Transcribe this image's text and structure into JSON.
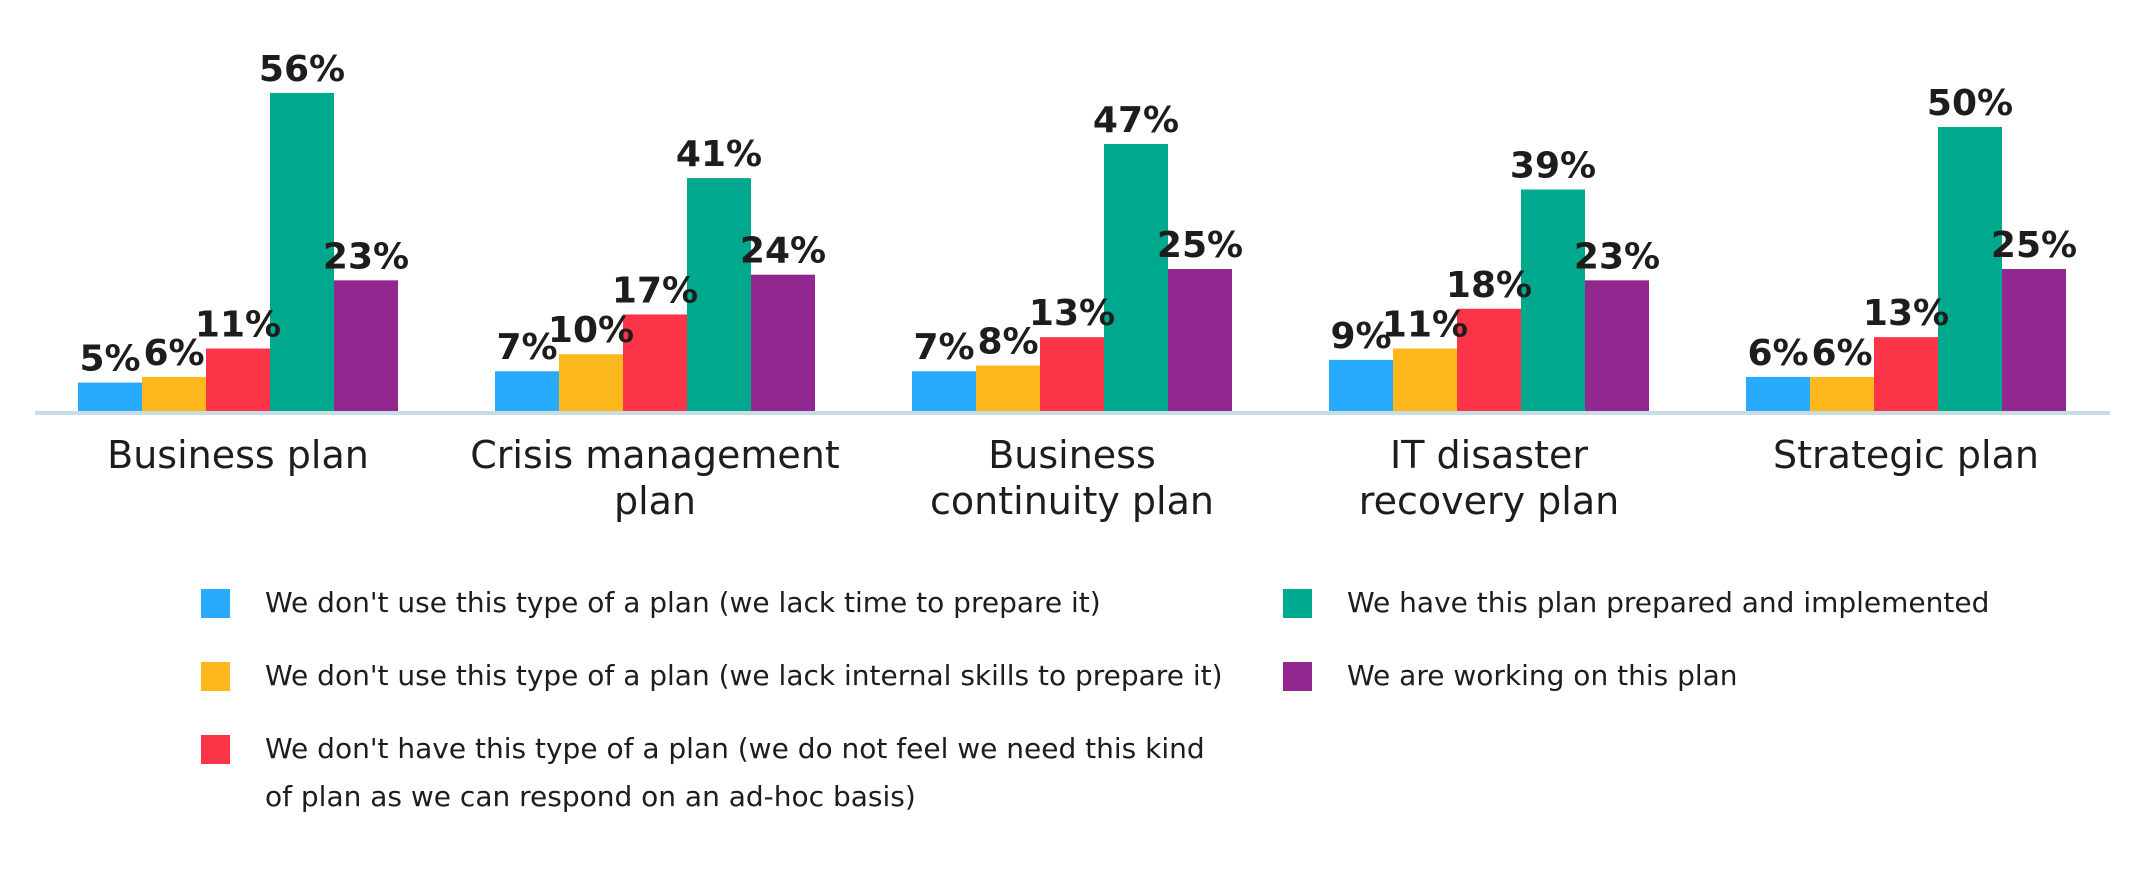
{
  "chart_data": {
    "type": "bar",
    "categories": [
      [
        "Business plan"
      ],
      [
        "Crisis management",
        "plan"
      ],
      [
        "Business",
        "continuity plan"
      ],
      [
        "IT disaster",
        "recovery plan"
      ],
      [
        "Strategic plan"
      ]
    ],
    "value_suffix": "%",
    "series": [
      {
        "name": "We don't use this type of a plan (we lack time to prepare it)",
        "color": "#29abfd",
        "values": [
          5,
          7,
          7,
          9,
          6
        ]
      },
      {
        "name": "We don't use this type of a plan (we lack internal skills to prepare it)",
        "color": "#fdb81e",
        "values": [
          6,
          10,
          8,
          11,
          6
        ]
      },
      {
        "name": "We don't have this type of a plan (we do not feel we need this kind of plan as we can respond on an ad-hoc basis)",
        "color": "#fc3448",
        "values": [
          11,
          17,
          13,
          18,
          13
        ]
      },
      {
        "name": "We have this plan prepared and implemented",
        "color": "#00a88e",
        "values": [
          56,
          41,
          47,
          39,
          50
        ]
      },
      {
        "name": "We are working on this plan",
        "color": "#92278f",
        "values": [
          23,
          24,
          25,
          23,
          25
        ]
      }
    ],
    "ylim": [
      0,
      60
    ],
    "baseline_color": "#c7dde3",
    "legend": {
      "placement": "bottom",
      "items": [
        {
          "lines": [
            "We don't use this type of a plan (we lack time to prepare it)"
          ]
        },
        {
          "lines": [
            "We don't use this type of a plan (we lack internal skills to prepare it)"
          ]
        },
        {
          "lines": [
            "We don't have this type of a plan (we do not feel we need this kind",
            "of plan as we can respond on an ad-hoc basis)"
          ]
        },
        {
          "lines": [
            "We have this plan prepared and implemented"
          ]
        },
        {
          "lines": [
            "We are working on this plan"
          ]
        }
      ]
    }
  }
}
